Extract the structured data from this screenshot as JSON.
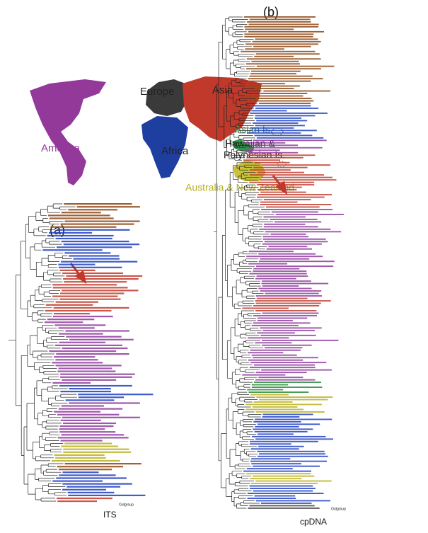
{
  "panels": {
    "a": "(a)",
    "b": "(b)"
  },
  "map": {
    "europe": "Europe",
    "asia": "Asia",
    "america": "America",
    "africa": "Africa",
    "asian_is": "Asian Is.",
    "hawaiian_1": "Hawaiian &",
    "hawaiian_2": "Polynesian Is.",
    "australia": "Australia & New Zealand"
  },
  "trees": [
    {
      "label": "ITS",
      "outgroup": "Outgroup"
    },
    {
      "label": "cpDNA",
      "outgroup": "Outgroup"
    }
  ]
}
